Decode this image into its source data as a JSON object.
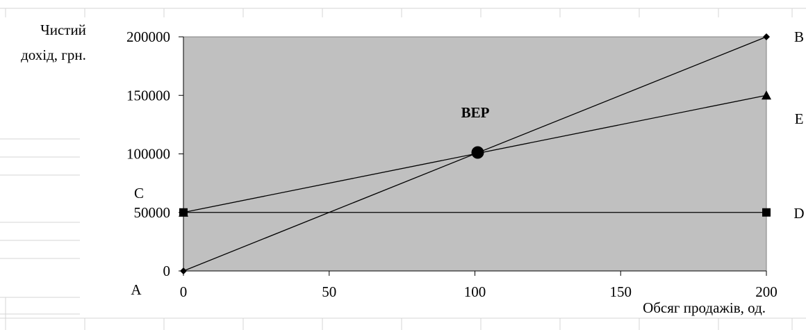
{
  "chart_data": {
    "type": "line",
    "ylabel_line1": "Чистий",
    "ylabel_line2": "дохід, грн.",
    "xlabel": "Обсяг продажів, од.",
    "xlim": [
      0,
      200
    ],
    "ylim": [
      0,
      200000
    ],
    "x_ticks": [
      "0",
      "50",
      "100",
      "150",
      "200"
    ],
    "y_ticks": [
      "0",
      "50000",
      "100000",
      "150000",
      "200000"
    ],
    "grid": false,
    "plot_background": "#c0c0c0",
    "series": [
      {
        "id": "revenue",
        "color": "#000000",
        "marker": "diamond",
        "points": [
          [
            0,
            0
          ],
          [
            200,
            200000
          ]
        ]
      },
      {
        "id": "total_cost",
        "color": "#000000",
        "marker": "triangle",
        "points": [
          [
            0,
            50000
          ],
          [
            200,
            150000
          ]
        ]
      },
      {
        "id": "fixed_cost",
        "color": "#000000",
        "marker": "square",
        "points": [
          [
            0,
            50000
          ],
          [
            200,
            50000
          ]
        ]
      }
    ],
    "bep": {
      "label": "BEP",
      "x": 100,
      "y": 100000
    },
    "annotations": {
      "A": "A",
      "B": "B",
      "C": "C",
      "D": "D",
      "E": "E"
    }
  }
}
